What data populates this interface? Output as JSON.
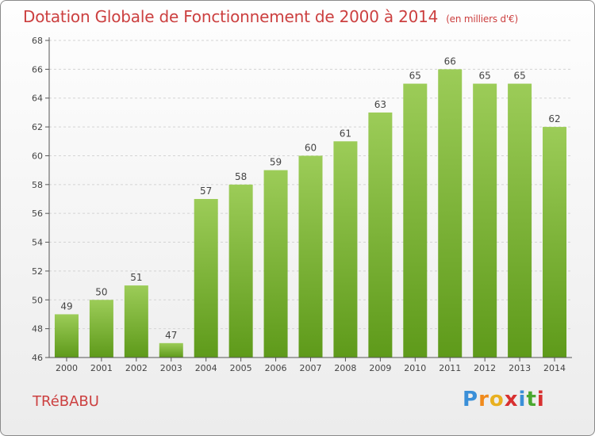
{
  "title": "Dotation Globale de Fonctionnement de 2000 à 2014",
  "unit": "(en milliers d'€)",
  "commune": "TRéBABU",
  "brand": {
    "letters": [
      "P",
      "r",
      "o",
      "x",
      "i",
      "t",
      "i"
    ],
    "colors": [
      "#3a8fd8",
      "#f08a1c",
      "#e8b020",
      "#d83030",
      "#3a8fd8",
      "#4aa830",
      "#d83030"
    ]
  },
  "chart_data": {
    "type": "bar",
    "categories": [
      "2000",
      "2001",
      "2002",
      "2003",
      "2004",
      "2005",
      "2006",
      "2007",
      "2008",
      "2009",
      "2010",
      "2011",
      "2012",
      "2013",
      "2014"
    ],
    "values": [
      49,
      50,
      51,
      47,
      57,
      58,
      59,
      60,
      61,
      63,
      65,
      66,
      65,
      65,
      62
    ],
    "ylim": [
      46,
      68
    ],
    "yticks": [
      46,
      48,
      50,
      52,
      54,
      56,
      58,
      60,
      62,
      64,
      66,
      68
    ],
    "grid": true,
    "bar_color_top": "#9ccc58",
    "bar_color_bottom": "#5e9a1a"
  }
}
